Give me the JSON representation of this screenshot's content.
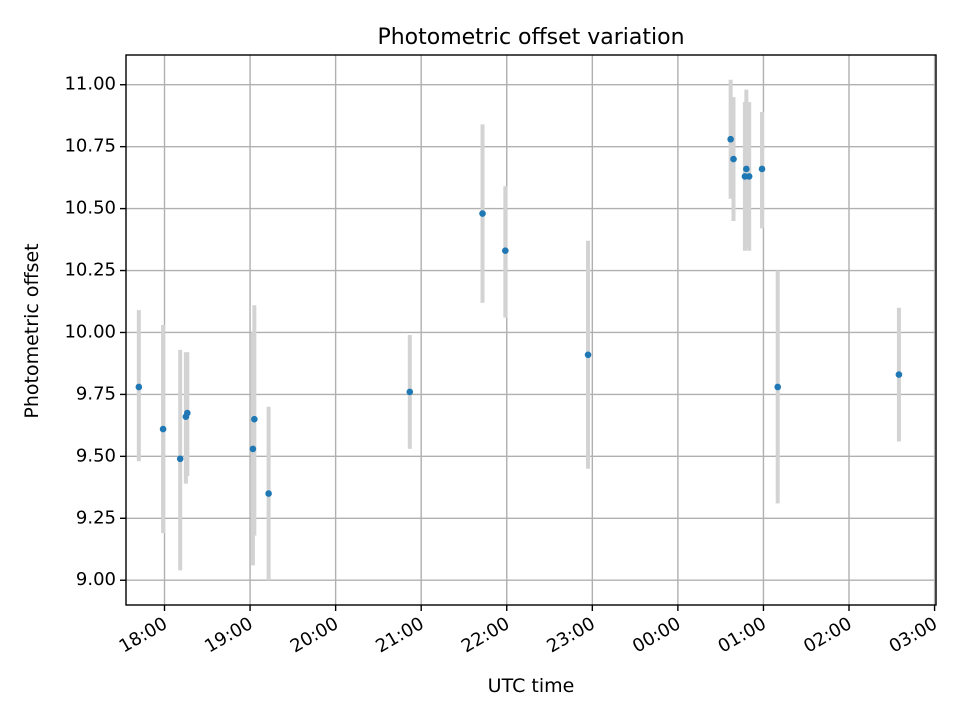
{
  "chart_data": {
    "type": "scatter",
    "title": "Photometric offset variation",
    "xlabel": "UTC time",
    "ylabel": "Photometric offset",
    "x_type": "time",
    "x_tick_labels": [
      "18:00",
      "19:00",
      "20:00",
      "21:00",
      "22:00",
      "23:00",
      "00:00",
      "01:00",
      "02:00",
      "03:00"
    ],
    "x_tick_values": [
      "18:00",
      "19:00",
      "20:00",
      "21:00",
      "22:00",
      "23:00",
      "00:00",
      "01:00",
      "02:00",
      "03:00"
    ],
    "xlim": [
      "17:33",
      "03:01"
    ],
    "y_tick_labels": [
      "9.00",
      "9.25",
      "9.50",
      "9.75",
      "10.00",
      "10.25",
      "10.50",
      "10.75",
      "11.00"
    ],
    "y_tick_values": [
      9.0,
      9.25,
      9.5,
      9.75,
      10.0,
      10.25,
      10.5,
      10.75,
      11.0
    ],
    "ylim": [
      8.9,
      11.12
    ],
    "grid": true,
    "colors": {
      "points": "#1f77b4",
      "error_bars": "#d3d3d3",
      "grid": "#b0b0b0"
    },
    "series": [
      {
        "points": [
          {
            "x": "17:42",
            "y": 9.78,
            "ylo": 9.48,
            "yhi": 10.09
          },
          {
            "x": "17:59",
            "y": 9.61,
            "ylo": 9.19,
            "yhi": 10.03
          },
          {
            "x": "18:11",
            "y": 9.49,
            "ylo": 9.04,
            "yhi": 9.93
          },
          {
            "x": "18:15",
            "y": 9.66,
            "ylo": 9.39,
            "yhi": 9.92
          },
          {
            "x": "18:16",
            "y": 9.675,
            "ylo": 9.42,
            "yhi": 9.92
          },
          {
            "x": "19:02",
            "y": 9.53,
            "ylo": 9.06,
            "yhi": 10.0
          },
          {
            "x": "19:03",
            "y": 9.65,
            "ylo": 9.18,
            "yhi": 10.11
          },
          {
            "x": "19:13",
            "y": 9.35,
            "ylo": 9.0,
            "yhi": 9.7
          },
          {
            "x": "20:52",
            "y": 9.76,
            "ylo": 9.53,
            "yhi": 9.99
          },
          {
            "x": "21:43",
            "y": 10.48,
            "ylo": 10.12,
            "yhi": 10.84
          },
          {
            "x": "21:59",
            "y": 10.33,
            "ylo": 10.06,
            "yhi": 10.59
          },
          {
            "x": "22:57",
            "y": 9.91,
            "ylo": 9.45,
            "yhi": 10.37
          },
          {
            "x": "00:37",
            "y": 10.78,
            "ylo": 10.54,
            "yhi": 11.02
          },
          {
            "x": "00:39",
            "y": 10.7,
            "ylo": 10.45,
            "yhi": 10.95
          },
          {
            "x": "00:47",
            "y": 10.63,
            "ylo": 10.33,
            "yhi": 10.93
          },
          {
            "x": "00:48",
            "y": 10.66,
            "ylo": 10.34,
            "yhi": 10.98
          },
          {
            "x": "00:50",
            "y": 10.63,
            "ylo": 10.33,
            "yhi": 10.93
          },
          {
            "x": "00:59",
            "y": 10.66,
            "ylo": 10.42,
            "yhi": 10.89
          },
          {
            "x": "01:10",
            "y": 9.78,
            "ylo": 9.31,
            "yhi": 10.25
          },
          {
            "x": "02:35",
            "y": 9.83,
            "ylo": 9.56,
            "yhi": 10.1
          }
        ]
      }
    ]
  }
}
